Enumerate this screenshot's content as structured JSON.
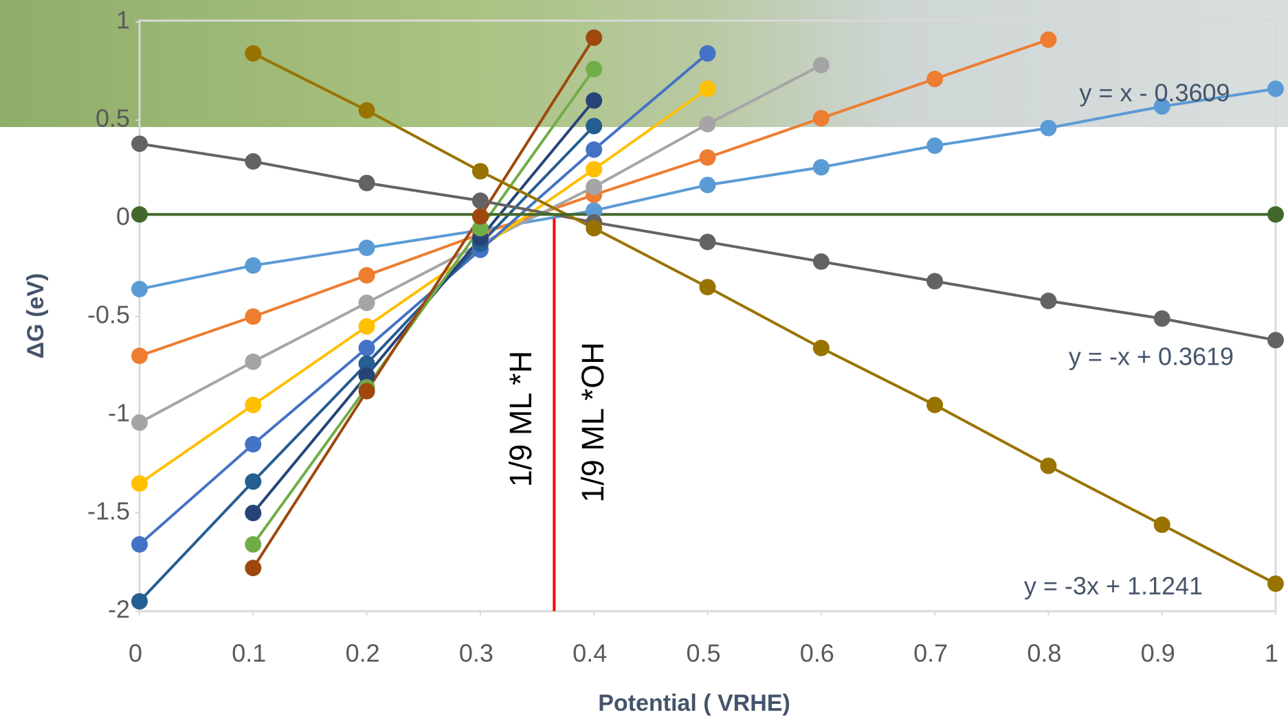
{
  "chart_data": {
    "type": "line",
    "x_label": "Potential  ( VRHE)",
    "y_label": "ΔG  (eV)",
    "x": [
      0,
      0.1,
      0.2,
      0.3,
      0.4,
      0.5,
      0.6,
      0.7,
      0.8,
      0.9,
      1
    ],
    "xlim": [
      0,
      1
    ],
    "xticks": [
      0,
      0.1,
      0.2,
      0.3,
      0.4,
      0.5,
      0.6,
      0.7,
      0.8,
      0.9,
      1
    ],
    "ylim": [
      -2,
      1
    ],
    "yticks": [
      -2,
      -1.5,
      -1,
      -0.5,
      0,
      0.5,
      1
    ],
    "series": [
      {
        "color": "#5b9bd5",
        "values": [
          -0.36,
          -0.24,
          -0.15,
          -0.06,
          0.04,
          0.17,
          0.26,
          0.37,
          0.46,
          0.57,
          0.66
        ]
      },
      {
        "color": "#ed7d31",
        "values": [
          -0.7,
          -0.5,
          -0.29,
          -0.08,
          0.12,
          0.31,
          0.51,
          0.71,
          0.91,
          null,
          null
        ]
      },
      {
        "color": "#a5a5a5",
        "values": [
          -1.04,
          -0.73,
          -0.43,
          -0.13,
          0.16,
          0.48,
          0.78,
          null,
          null,
          null,
          null
        ]
      },
      {
        "color": "#ffc000",
        "values": [
          -1.35,
          -0.95,
          -0.55,
          -0.15,
          0.25,
          0.66,
          null,
          null,
          null,
          null,
          null
        ]
      },
      {
        "color": "#4472c4",
        "values": [
          -1.66,
          -1.15,
          -0.66,
          -0.16,
          0.35,
          0.84,
          null,
          null,
          null,
          null,
          null
        ]
      },
      {
        "color": "#255e91",
        "values": [
          -1.95,
          -1.34,
          -0.74,
          -0.13,
          0.47,
          null,
          null,
          null,
          null,
          null,
          null
        ]
      },
      {
        "color": "#264478",
        "values": [
          null,
          -1.5,
          -0.8,
          -0.1,
          0.6,
          null,
          null,
          null,
          null,
          null,
          null
        ]
      },
      {
        "color": "#70ad47",
        "values": [
          null,
          -1.66,
          -0.86,
          -0.05,
          0.76,
          null,
          null,
          null,
          null,
          null,
          null
        ]
      },
      {
        "color": "#9e480e",
        "values": [
          null,
          -1.78,
          -0.88,
          0.01,
          0.92,
          null,
          null,
          null,
          null,
          null,
          null
        ]
      },
      {
        "color": "#636363",
        "values": [
          0.38,
          0.29,
          0.18,
          0.09,
          -0.02,
          -0.12,
          -0.22,
          -0.32,
          -0.42,
          -0.51,
          -0.62
        ]
      },
      {
        "color": "#997300",
        "values": [
          null,
          0.84,
          0.55,
          0.24,
          -0.05,
          -0.35,
          -0.66,
          -0.95,
          -1.26,
          -1.56,
          -1.86
        ]
      },
      {
        "color": "#43682b",
        "x": [
          0,
          1
        ],
        "values": [
          0.02,
          0.02
        ]
      }
    ],
    "marker_line": {
      "x": 0.365,
      "y": [
        0,
        -2
      ],
      "color": "#ff0000"
    },
    "equations": [
      "y = x - 0.3609",
      "y = -x + 0.3619",
      "y = -3x + 1.1241"
    ],
    "annotations": [
      "1/9 ML *H",
      "1/9 ML *OH"
    ]
  }
}
